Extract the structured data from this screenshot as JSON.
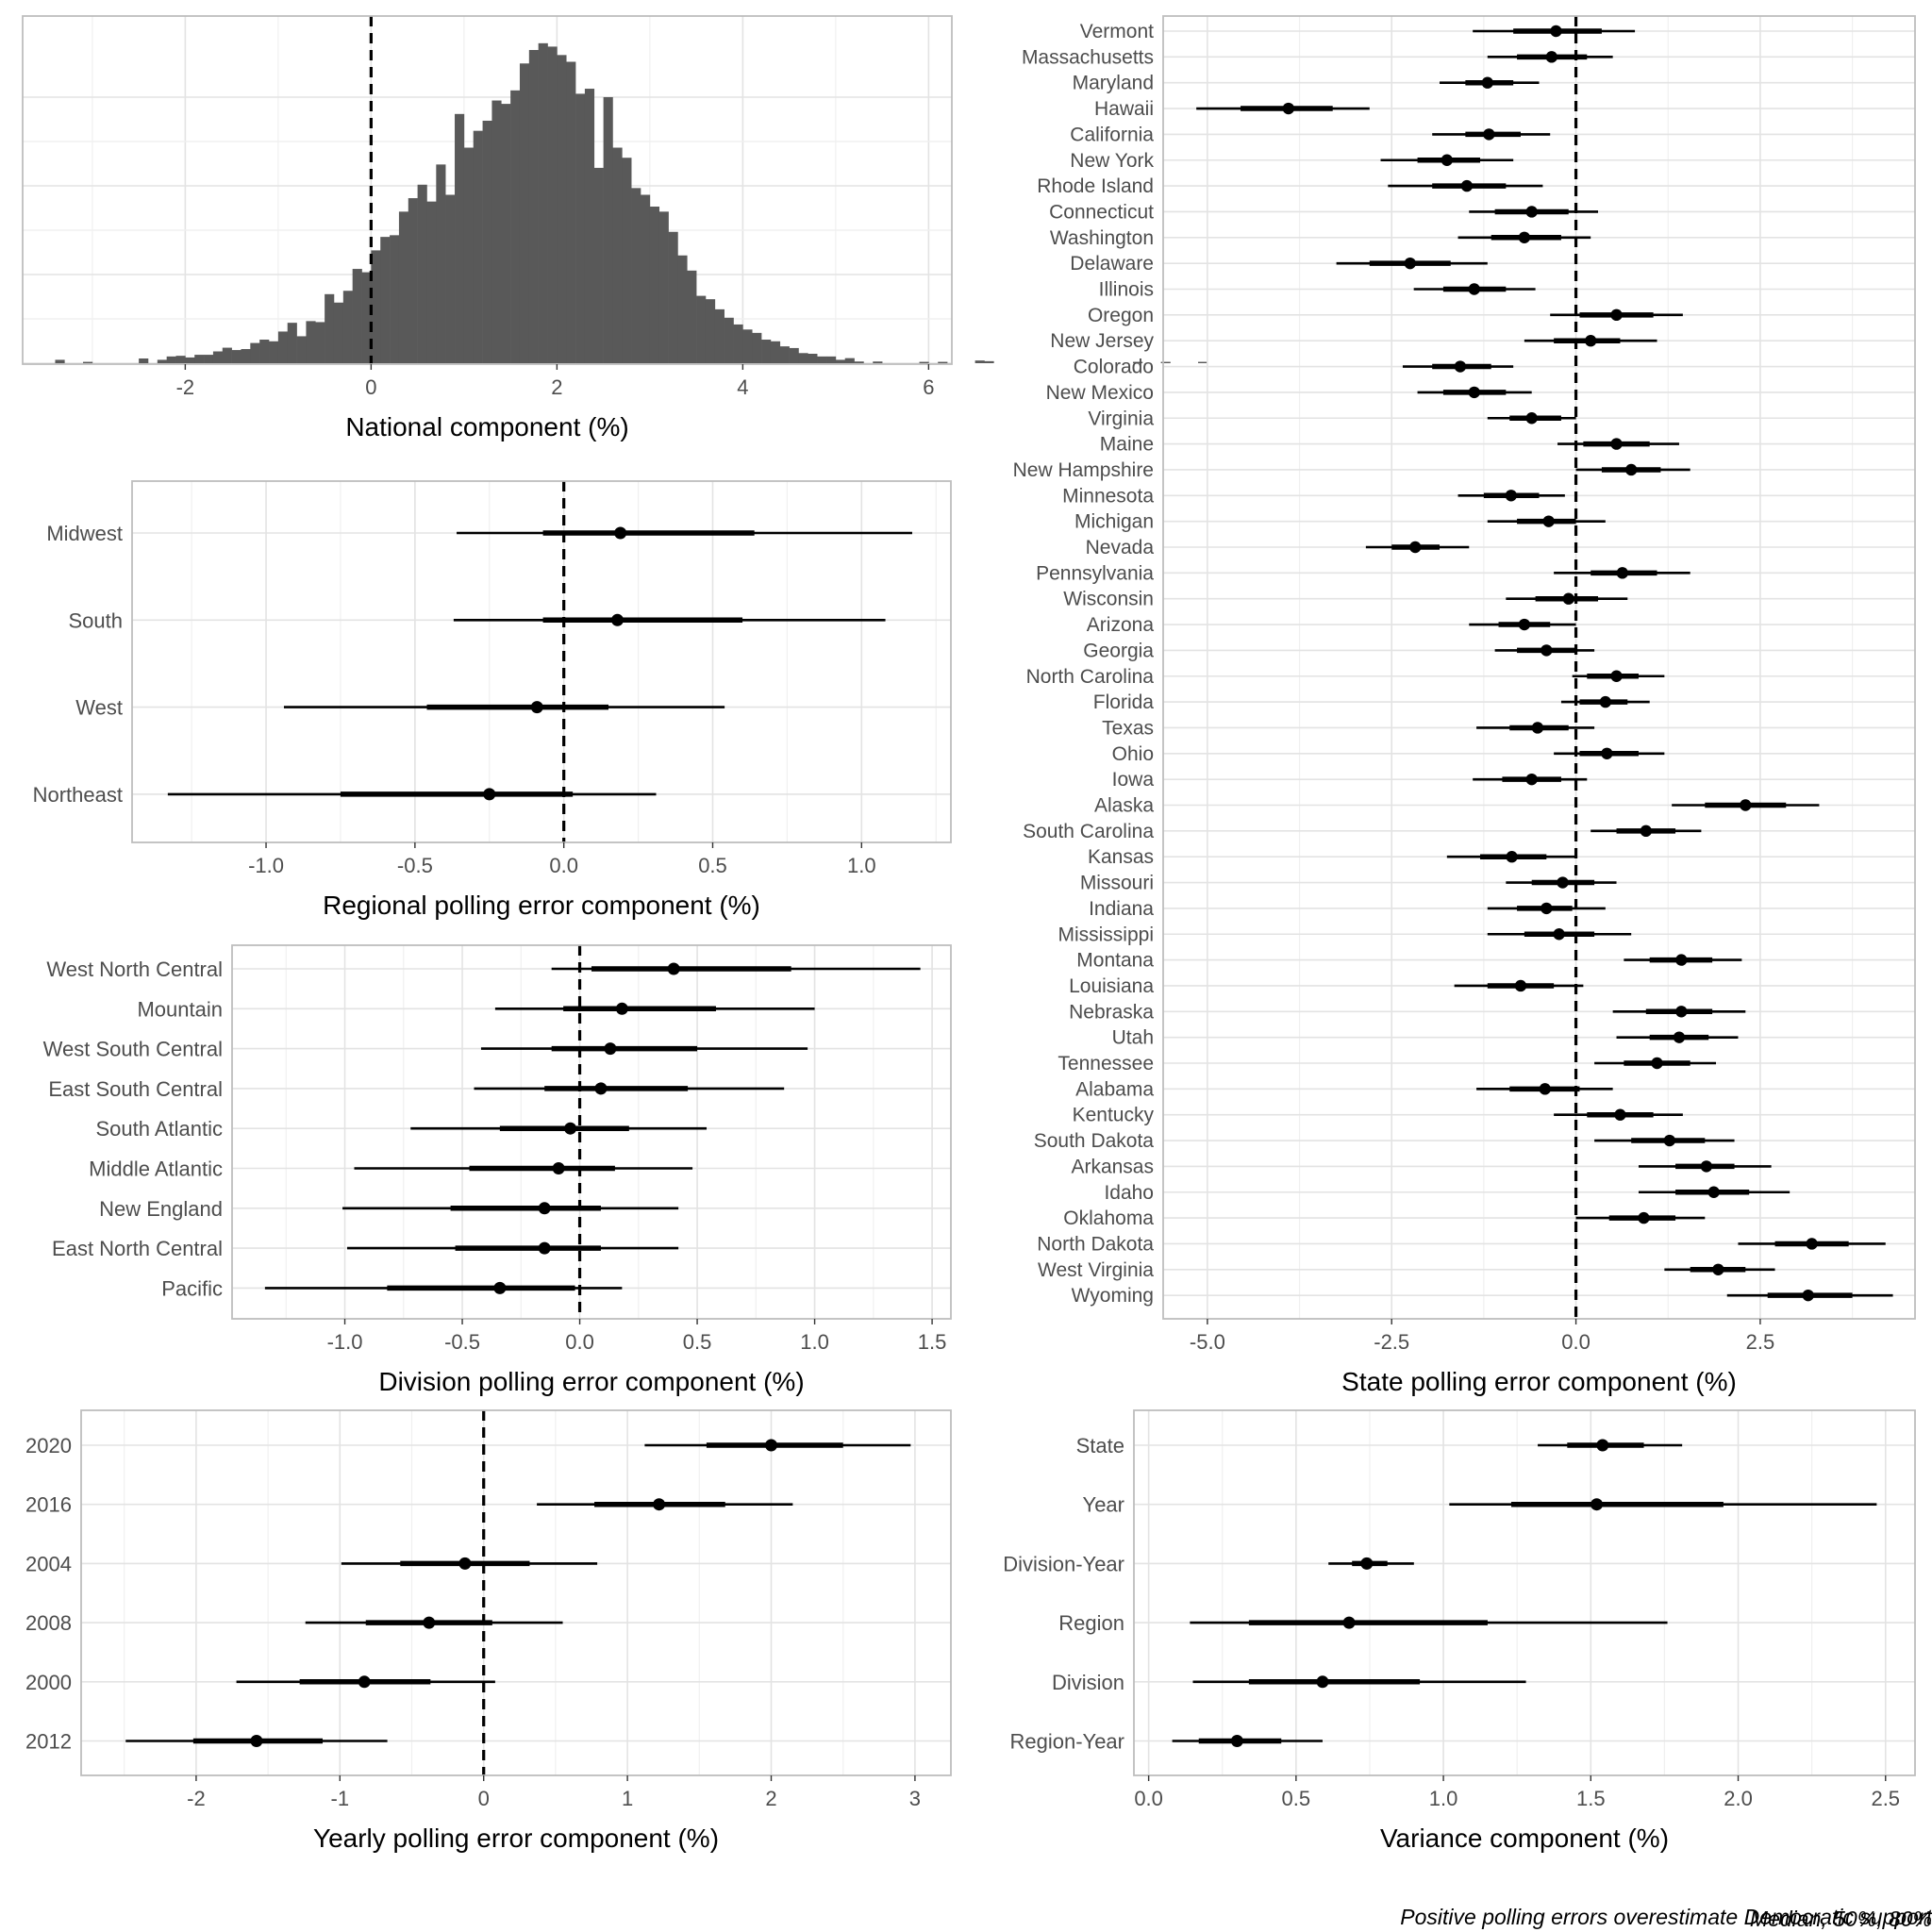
{
  "caption": {
    "line1": "Positive polling errors overestimate Democratic support",
    "line2": "Median, 50%, 80%"
  },
  "chart_data": [
    {
      "id": "national",
      "type": "histogram",
      "xlabel": "National component (%)",
      "xlim": [
        -3.75,
        6.25
      ],
      "xticks": [
        -2,
        0,
        2,
        4,
        6
      ],
      "ylim": [
        0,
        1
      ],
      "reference_line": 0,
      "bins": {
        "start": -3.4,
        "width": 0.1,
        "values": [
          0.01,
          0,
          0,
          0.004,
          0,
          0,
          0,
          0,
          0,
          0.014,
          0,
          0.01,
          0.02,
          0.022,
          0.017,
          0.025,
          0.025,
          0.035,
          0.046,
          0.039,
          0.042,
          0.06,
          0.07,
          0.065,
          0.094,
          0.12,
          0.08,
          0.125,
          0.122,
          0.205,
          0.18,
          0.215,
          0.28,
          0.27,
          0.335,
          0.375,
          0.38,
          0.45,
          0.49,
          0.53,
          0.48,
          0.59,
          0.5,
          0.74,
          0.64,
          0.69,
          0.72,
          0.78,
          0.77,
          0.81,
          0.89,
          0.93,
          0.95,
          0.94,
          0.915,
          0.895,
          0.8,
          0.815,
          0.58,
          0.79,
          0.64,
          0.61,
          0.52,
          0.5,
          0.465,
          0.45,
          0.39,
          0.32,
          0.275,
          0.2,
          0.19,
          0.16,
          0.135,
          0.115,
          0.1,
          0.09,
          0.07,
          0.065,
          0.05,
          0.045,
          0.03,
          0.028,
          0.02,
          0.02,
          0.01,
          0.015,
          0.005,
          0,
          0.005,
          0,
          0,
          0,
          0,
          0.004,
          0,
          0.004,
          0,
          0,
          0,
          0.008,
          0.006,
          0,
          0,
          0,
          0,
          0,
          0,
          0,
          0,
          0,
          0,
          0,
          0,
          0,
          0,
          0,
          0.004,
          0,
          0,
          0.004,
          0,
          0,
          0,
          0.004
        ]
      }
    },
    {
      "id": "regional",
      "type": "interval",
      "xlabel": "Regional polling error component (%)",
      "xlim": [
        -1.45,
        1.3
      ],
      "xticks": [
        -1.0,
        -0.5,
        0.0,
        0.5,
        1.0
      ],
      "xtick_labels": [
        "-1.0",
        "-0.5",
        "0.0",
        "0.5",
        "1.0"
      ],
      "reference_line": 0,
      "categories": [
        "Midwest",
        "South",
        "West",
        "Northeast"
      ],
      "median": [
        0.19,
        0.18,
        -0.09,
        -0.25
      ],
      "q50": [
        [
          -0.07,
          0.64
        ],
        [
          -0.07,
          0.6
        ],
        [
          -0.46,
          0.15
        ],
        [
          -0.75,
          0.03
        ]
      ],
      "q80": [
        [
          -0.36,
          1.17
        ],
        [
          -0.37,
          1.08
        ],
        [
          -0.94,
          0.54
        ],
        [
          -1.33,
          0.31
        ]
      ]
    },
    {
      "id": "division",
      "type": "interval",
      "xlabel": "Division polling error component (%)",
      "xlim": [
        -1.48,
        1.58
      ],
      "xticks": [
        -1.0,
        -0.5,
        0.0,
        0.5,
        1.0,
        1.5
      ],
      "xtick_labels": [
        "-1.0",
        "-0.5",
        "0.0",
        "0.5",
        "1.0",
        "1.5"
      ],
      "reference_line": 0,
      "categories": [
        "West North Central",
        "Mountain",
        "West South Central",
        "East South Central",
        "South Atlantic",
        "Middle Atlantic",
        "New England",
        "East North Central",
        "Pacific"
      ],
      "median": [
        0.4,
        0.18,
        0.13,
        0.09,
        -0.04,
        -0.09,
        -0.15,
        -0.15,
        -0.34
      ],
      "q50": [
        [
          0.05,
          0.9
        ],
        [
          -0.07,
          0.58
        ],
        [
          -0.12,
          0.5
        ],
        [
          -0.15,
          0.46
        ],
        [
          -0.34,
          0.21
        ],
        [
          -0.47,
          0.15
        ],
        [
          -0.55,
          0.09
        ],
        [
          -0.53,
          0.09
        ],
        [
          -0.82,
          -0.02
        ]
      ],
      "q80": [
        [
          -0.12,
          1.45
        ],
        [
          -0.36,
          1.0
        ],
        [
          -0.42,
          0.97
        ],
        [
          -0.45,
          0.87
        ],
        [
          -0.72,
          0.54
        ],
        [
          -0.96,
          0.48
        ],
        [
          -1.01,
          0.42
        ],
        [
          -0.99,
          0.42
        ],
        [
          -1.34,
          0.18
        ]
      ]
    },
    {
      "id": "state",
      "type": "interval",
      "xlabel": "State polling error component (%)",
      "xlim": [
        -5.6,
        4.6
      ],
      "xticks": [
        -5.0,
        -2.5,
        0.0,
        2.5
      ],
      "xtick_labels": [
        "-5.0",
        "-2.5",
        "0.0",
        "2.5"
      ],
      "reference_line": 0,
      "categories": [
        "Vermont",
        "Massachusetts",
        "Maryland",
        "Hawaii",
        "California",
        "New York",
        "Rhode Island",
        "Connecticut",
        "Washington",
        "Delaware",
        "Illinois",
        "Oregon",
        "New Jersey",
        "Colorado",
        "New Mexico",
        "Virginia",
        "Maine",
        "New Hampshire",
        "Minnesota",
        "Michigan",
        "Nevada",
        "Pennsylvania",
        "Wisconsin",
        "Arizona",
        "Georgia",
        "North Carolina",
        "Florida",
        "Texas",
        "Ohio",
        "Iowa",
        "Alaska",
        "South Carolina",
        "Kansas",
        "Missouri",
        "Indiana",
        "Mississippi",
        "Montana",
        "Louisiana",
        "Nebraska",
        "Utah",
        "Tennessee",
        "Alabama",
        "Kentucky",
        "South Dakota",
        "Arkansas",
        "Idaho",
        "Oklahoma",
        "North Dakota",
        "West Virginia",
        "Wyoming"
      ],
      "median": [
        -0.27,
        -0.33,
        -1.2,
        -3.9,
        -1.18,
        -1.75,
        -1.48,
        -0.6,
        -0.7,
        -2.25,
        -1.38,
        0.55,
        0.2,
        -1.57,
        -1.38,
        -0.6,
        0.55,
        0.75,
        -0.88,
        -0.37,
        -2.18,
        0.63,
        -0.1,
        -0.7,
        -0.4,
        0.55,
        0.4,
        -0.52,
        0.42,
        -0.6,
        2.3,
        0.95,
        -0.87,
        -0.18,
        -0.4,
        -0.23,
        1.43,
        -0.75,
        1.43,
        1.4,
        1.1,
        -0.42,
        0.6,
        1.27,
        1.77,
        1.87,
        0.92,
        3.2,
        1.93,
        3.15
      ],
      "q50": [
        [
          -0.85,
          0.35
        ],
        [
          -0.8,
          0.15
        ],
        [
          -1.5,
          -0.85
        ],
        [
          -4.55,
          -3.3
        ],
        [
          -1.5,
          -0.75
        ],
        [
          -2.15,
          -1.3
        ],
        [
          -1.95,
          -0.95
        ],
        [
          -1.1,
          -0.1
        ],
        [
          -1.15,
          -0.2
        ],
        [
          -2.8,
          -1.7
        ],
        [
          -1.8,
          -0.95
        ],
        [
          0.05,
          1.05
        ],
        [
          -0.3,
          0.6
        ],
        [
          -1.95,
          -1.15
        ],
        [
          -1.8,
          -0.95
        ],
        [
          -0.9,
          -0.2
        ],
        [
          0.1,
          1.0
        ],
        [
          0.35,
          1.15
        ],
        [
          -1.25,
          -0.5
        ],
        [
          -0.8,
          0.0
        ],
        [
          -2.5,
          -1.85
        ],
        [
          0.2,
          1.1
        ],
        [
          -0.55,
          0.3
        ],
        [
          -1.05,
          -0.35
        ],
        [
          -0.8,
          0.0
        ],
        [
          0.15,
          0.85
        ],
        [
          0.05,
          0.7
        ],
        [
          -0.9,
          -0.1
        ],
        [
          0.05,
          0.85
        ],
        [
          -1.0,
          -0.2
        ],
        [
          1.75,
          2.85
        ],
        [
          0.55,
          1.35
        ],
        [
          -1.3,
          -0.4
        ],
        [
          -0.6,
          0.25
        ],
        [
          -0.8,
          -0.05
        ],
        [
          -0.7,
          0.25
        ],
        [
          1.0,
          1.85
        ],
        [
          -1.2,
          -0.3
        ],
        [
          0.95,
          1.85
        ],
        [
          1.0,
          1.8
        ],
        [
          0.65,
          1.55
        ],
        [
          -0.9,
          0.05
        ],
        [
          0.15,
          1.05
        ],
        [
          0.75,
          1.75
        ],
        [
          1.35,
          2.15
        ],
        [
          1.35,
          2.35
        ],
        [
          0.45,
          1.35
        ],
        [
          2.7,
          3.7
        ],
        [
          1.55,
          2.3
        ],
        [
          2.6,
          3.75
        ]
      ],
      "q80": [
        [
          -1.4,
          0.8
        ],
        [
          -1.2,
          0.5
        ],
        [
          -1.85,
          -0.5
        ],
        [
          -5.15,
          -2.8
        ],
        [
          -1.95,
          -0.35
        ],
        [
          -2.65,
          -0.85
        ],
        [
          -2.55,
          -0.45
        ],
        [
          -1.45,
          0.3
        ],
        [
          -1.6,
          0.2
        ],
        [
          -3.25,
          -1.2
        ],
        [
          -2.2,
          -0.55
        ],
        [
          -0.35,
          1.45
        ],
        [
          -0.7,
          1.1
        ],
        [
          -2.35,
          -0.85
        ],
        [
          -2.15,
          -0.6
        ],
        [
          -1.2,
          0.0
        ],
        [
          -0.25,
          1.4
        ],
        [
          0.0,
          1.55
        ],
        [
          -1.6,
          -0.15
        ],
        [
          -1.2,
          0.4
        ],
        [
          -2.85,
          -1.45
        ],
        [
          -0.3,
          1.55
        ],
        [
          -0.95,
          0.7
        ],
        [
          -1.45,
          0.0
        ],
        [
          -1.1,
          0.25
        ],
        [
          -0.05,
          1.2
        ],
        [
          -0.2,
          1.0
        ],
        [
          -1.35,
          0.25
        ],
        [
          -0.3,
          1.2
        ],
        [
          -1.4,
          0.15
        ],
        [
          1.3,
          3.3
        ],
        [
          0.2,
          1.7
        ],
        [
          -1.75,
          0.0
        ],
        [
          -0.95,
          0.55
        ],
        [
          -1.2,
          0.4
        ],
        [
          -1.2,
          0.75
        ],
        [
          0.65,
          2.25
        ],
        [
          -1.65,
          0.1
        ],
        [
          0.5,
          2.3
        ],
        [
          0.55,
          2.2
        ],
        [
          0.25,
          1.9
        ],
        [
          -1.35,
          0.5
        ],
        [
          -0.3,
          1.45
        ],
        [
          0.25,
          2.15
        ],
        [
          0.85,
          2.65
        ],
        [
          0.85,
          2.9
        ],
        [
          0.0,
          1.75
        ],
        [
          2.2,
          4.2
        ],
        [
          1.2,
          2.7
        ],
        [
          2.05,
          4.3
        ]
      ]
    },
    {
      "id": "yearly",
      "type": "interval",
      "xlabel": "Yearly polling error component (%)",
      "xlim": [
        -2.8,
        3.25
      ],
      "xticks": [
        -2,
        -1,
        0,
        1,
        2,
        3
      ],
      "xtick_labels": [
        "-2",
        "-1",
        "0",
        "1",
        "2",
        "3"
      ],
      "reference_line": 0,
      "categories": [
        "2020",
        "2016",
        "2004",
        "2008",
        "2000",
        "2012"
      ],
      "median": [
        2.0,
        1.22,
        -0.13,
        -0.38,
        -0.83,
        -1.58
      ],
      "q50": [
        [
          1.55,
          2.5
        ],
        [
          0.77,
          1.68
        ],
        [
          -0.58,
          0.32
        ],
        [
          -0.82,
          0.06
        ],
        [
          -1.28,
          -0.37
        ],
        [
          -2.02,
          -1.12
        ]
      ],
      "q80": [
        [
          1.12,
          2.97
        ],
        [
          0.37,
          2.15
        ],
        [
          -0.99,
          0.79
        ],
        [
          -1.24,
          0.55
        ],
        [
          -1.72,
          0.08
        ],
        [
          -2.49,
          -0.67
        ]
      ]
    },
    {
      "id": "variance",
      "type": "interval",
      "xlabel": "Variance component (%)",
      "xlim": [
        -0.05,
        2.6
      ],
      "xticks": [
        0.0,
        0.5,
        1.0,
        1.5,
        2.0,
        2.5
      ],
      "xtick_labels": [
        "0.0",
        "0.5",
        "1.0",
        "1.5",
        "2.0",
        "2.5"
      ],
      "categories": [
        "State",
        "Year",
        "Division-Year",
        "Region",
        "Division",
        "Region-Year"
      ],
      "median": [
        1.54,
        1.52,
        0.74,
        0.68,
        0.59,
        0.3
      ],
      "q50": [
        [
          1.42,
          1.68
        ],
        [
          1.23,
          1.95
        ],
        [
          0.69,
          0.81
        ],
        [
          0.34,
          1.15
        ],
        [
          0.34,
          0.92
        ],
        [
          0.17,
          0.45
        ]
      ],
      "q80": [
        [
          1.32,
          1.81
        ],
        [
          1.02,
          2.47
        ],
        [
          0.61,
          0.9
        ],
        [
          0.14,
          1.76
        ],
        [
          0.15,
          1.28
        ],
        [
          0.08,
          0.59
        ]
      ]
    }
  ]
}
